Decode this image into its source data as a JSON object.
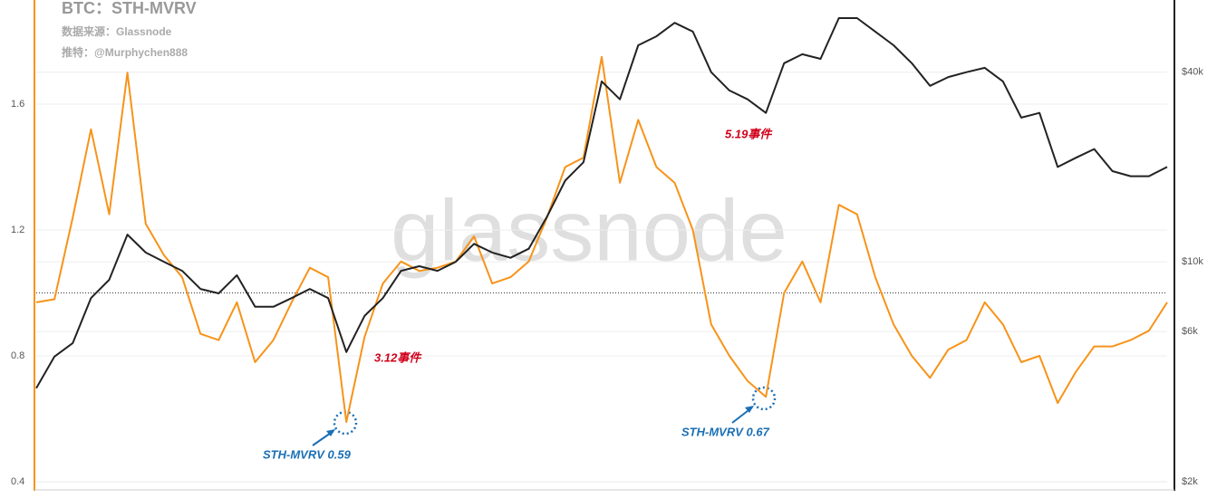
{
  "chart_data": {
    "type": "line",
    "title": "BTC：STH-MVRV",
    "subtitle": [
      "数据来源：Glassnode",
      "推特：@Murphychen888"
    ],
    "watermark": "glassnode",
    "annotations": [
      "3.12事件",
      "5.19事件",
      "STH-MVRV 0.59",
      "STH-MVRV 0.67"
    ],
    "categories": [
      null,
      null,
      null,
      null,
      null,
      null,
      null,
      null,
      null,
      null,
      null,
      null,
      null,
      null,
      null,
      null,
      null,
      null,
      null,
      null,
      null,
      null,
      null,
      null,
      null,
      null,
      null,
      null,
      null,
      null,
      null,
      null,
      null,
      null,
      null,
      null,
      null,
      null,
      null,
      null,
      null,
      null,
      null,
      null,
      null,
      null,
      null,
      null,
      null,
      null,
      null,
      null,
      null,
      null,
      null,
      null,
      null,
      null,
      null,
      null,
      null,
      null,
      null
    ],
    "series": [
      {
        "name": "STH-MVRV",
        "color": "#f7931a",
        "axis": "y",
        "values": [
          0.97,
          0.98,
          1.24,
          1.52,
          1.25,
          1.7,
          1.22,
          1.12,
          1.05,
          0.87,
          0.85,
          0.97,
          0.78,
          0.85,
          0.97,
          1.08,
          1.05,
          0.59,
          0.86,
          1.03,
          1.1,
          1.07,
          1.08,
          1.1,
          1.18,
          1.03,
          1.05,
          1.1,
          1.24,
          1.4,
          1.43,
          1.75,
          1.35,
          1.55,
          1.4,
          1.35,
          1.2,
          0.9,
          0.8,
          0.72,
          0.67,
          1.0,
          1.1,
          0.97,
          1.28,
          1.25,
          1.05,
          0.9,
          0.8,
          0.73,
          0.82,
          0.85,
          0.97,
          0.9,
          0.78,
          0.8,
          0.65,
          0.75,
          0.83,
          0.83,
          0.85,
          0.88,
          0.97
        ]
      },
      {
        "name": "BTC",
        "color": "#222222",
        "axis": "y2",
        "values": [
          3970,
          5000,
          5520,
          7670,
          8770,
          12200,
          10700,
          10000,
          9360,
          8200,
          7940,
          9060,
          7200,
          7200,
          7670,
          8200,
          7670,
          5170,
          6730,
          7670,
          9360,
          9680,
          9360,
          10000,
          11400,
          10700,
          10300,
          11000,
          13900,
          18100,
          20700,
          37400,
          32800,
          48700,
          52000,
          57400,
          53800,
          40000,
          35000,
          32800,
          29700,
          42700,
          45600,
          44100,
          59400,
          59400,
          53800,
          48700,
          42700,
          36200,
          38600,
          40000,
          41300,
          37400,
          28700,
          29700,
          20000,
          21400,
          22800,
          19400,
          18700,
          18700,
          20000
        ]
      }
    ],
    "ylim": [
      0.377,
      1.931
    ],
    "yticks": [
      0.4,
      0.8,
      1.2,
      1.6
    ],
    "y2lim": [
      1900,
      67800
    ],
    "y2ticks": [
      {
        "value": 2000,
        "label": "$2k"
      },
      {
        "value": 6000,
        "label": "$6k"
      },
      {
        "value": 10000,
        "label": "$10k"
      },
      {
        "value": 40000,
        "label": "$40k"
      }
    ],
    "y2_log_scale": true,
    "reference_line": 1,
    "grid": true
  }
}
